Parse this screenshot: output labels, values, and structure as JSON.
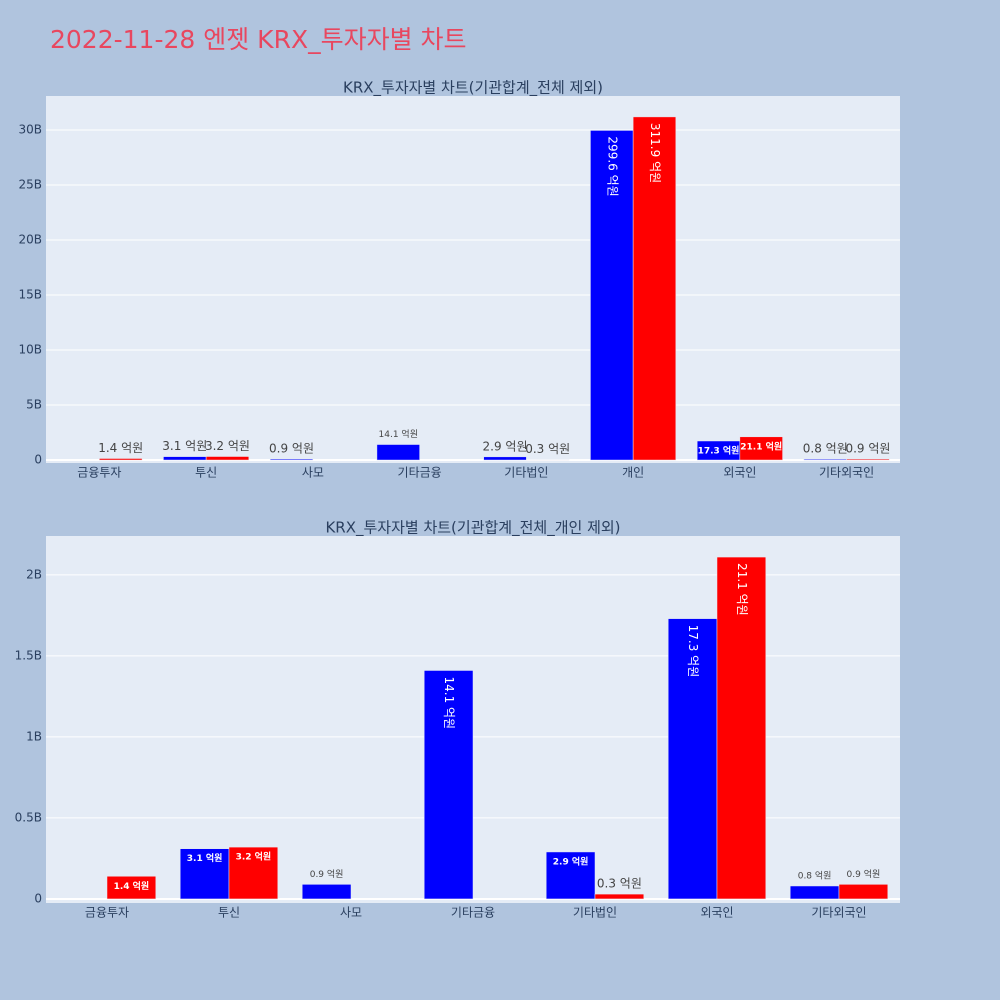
{
  "title": "2022-11-28 엔젯 KRX_투자자별 차트",
  "chart_data": [
    {
      "type": "bar",
      "title": "KRX_투자자별 차트(기관합계_전체 제외)",
      "categories": [
        "금융투자",
        "투신",
        "사모",
        "기타금융",
        "기타법인",
        "개인",
        "외국인",
        "기타외국인"
      ],
      "series": [
        {
          "color": "#0000ff",
          "values": [
            null,
            310000000,
            90000000,
            1410000000,
            290000000,
            29960000000,
            1730000000,
            80000000
          ],
          "value_labels": [
            null,
            "3.1 억원",
            "0.9 억원",
            "14.1 억원",
            "2.9 억원",
            "299.6 억원",
            "17.3 억원",
            "0.8 억원"
          ]
        },
        {
          "color": "#ff0000",
          "values": [
            140000000,
            320000000,
            null,
            null,
            30000000,
            31190000000,
            2110000000,
            90000000
          ],
          "value_labels": [
            "1.4 억원",
            "3.2 억원",
            null,
            null,
            "0.3 억원",
            "311.9 억원",
            "21.1 억원",
            "0.9 억원"
          ]
        }
      ],
      "ylim": [
        -270000000,
        33090000000
      ],
      "yticks": [
        0,
        {
          "value": 5000000000,
          "label": "5B"
        },
        {
          "value": 10000000000,
          "label": "10B"
        },
        {
          "value": 15000000000,
          "label": "15B"
        },
        {
          "value": 20000000000,
          "label": "20B"
        },
        {
          "value": 25000000000,
          "label": "25B"
        },
        {
          "value": 30000000000,
          "label": "30B"
        }
      ],
      "grid": true
    },
    {
      "type": "bar",
      "title": "KRX_투자자별 차트(기관합계_전체_개인 제외)",
      "categories": [
        "금융투자",
        "투신",
        "사모",
        "기타금융",
        "기타법인",
        "외국인",
        "기타외국인"
      ],
      "series": [
        {
          "color": "#0000ff",
          "values": [
            null,
            310000000,
            90000000,
            1410000000,
            290000000,
            1730000000,
            80000000
          ],
          "value_labels": [
            null,
            "3.1 억원",
            "0.9 억원",
            "14.1 억원",
            "2.9 억원",
            "17.3 억원",
            "0.8 억원"
          ]
        },
        {
          "color": "#ff0000",
          "values": [
            140000000,
            320000000,
            null,
            null,
            30000000,
            2110000000,
            90000000
          ],
          "value_labels": [
            "1.4 억원",
            "3.2 억원",
            null,
            null,
            "0.3 억원",
            "21.1 억원",
            "0.9 억원"
          ]
        }
      ],
      "ylim": [
        -25000000,
        2240000000
      ],
      "yticks": [
        0,
        {
          "value": 500000000,
          "label": "0.5B"
        },
        {
          "value": 1000000000,
          "label": "1B"
        },
        {
          "value": 1500000000,
          "label": "1.5B"
        },
        {
          "value": 2000000000,
          "label": "2B"
        }
      ],
      "grid": true
    }
  ]
}
